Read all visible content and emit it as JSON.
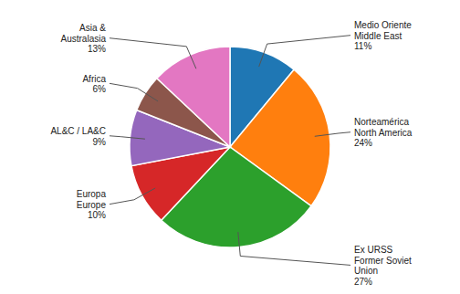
{
  "chart_data": {
    "type": "pie",
    "categories": [
      "Medio Oriente\nMiddle East",
      "Norteamérica\nNorth America",
      "Ex URSS\nFormer Soviet\nUnion",
      "Europa\nEurope",
      "AL&C / LA&C",
      "Africa",
      "Asia &\nAustralasia"
    ],
    "values": [
      11,
      24,
      27,
      10,
      9,
      6,
      13
    ],
    "value_labels": [
      "11%",
      "24%",
      "27%",
      "10%",
      "9%",
      "6%",
      "13%"
    ],
    "data_labels": true
  }
}
